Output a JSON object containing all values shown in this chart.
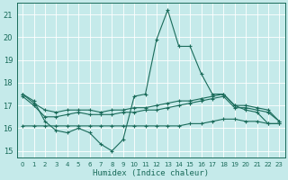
{
  "xlabel": "Humidex (Indice chaleur)",
  "xlim": [
    -0.5,
    23.5
  ],
  "ylim": [
    14.7,
    21.5
  ],
  "yticks": [
    15,
    16,
    17,
    18,
    19,
    20,
    21
  ],
  "bg_color": "#c5eaea",
  "grid_color": "#ffffff",
  "line_color": "#1a6b5a",
  "line1": [
    17.5,
    17.2,
    16.3,
    15.9,
    15.8,
    16.0,
    15.8,
    15.3,
    15.0,
    15.5,
    17.4,
    17.5,
    19.9,
    21.2,
    19.6,
    19.6,
    18.4,
    17.5,
    17.5,
    17.0,
    16.8,
    16.7,
    16.2,
    16.2
  ],
  "line2": [
    17.5,
    17.1,
    16.8,
    16.7,
    16.8,
    16.8,
    16.8,
    16.7,
    16.8,
    16.8,
    16.9,
    16.9,
    17.0,
    17.1,
    17.2,
    17.2,
    17.3,
    17.4,
    17.5,
    17.0,
    17.0,
    16.9,
    16.8,
    16.3
  ],
  "line3": [
    17.4,
    17.0,
    16.5,
    16.5,
    16.6,
    16.7,
    16.6,
    16.6,
    16.6,
    16.7,
    16.7,
    16.8,
    16.8,
    16.9,
    17.0,
    17.1,
    17.2,
    17.3,
    17.4,
    16.9,
    16.9,
    16.8,
    16.7,
    16.3
  ],
  "line4": [
    16.1,
    16.1,
    16.1,
    16.1,
    16.1,
    16.1,
    16.1,
    16.1,
    16.1,
    16.1,
    16.1,
    16.1,
    16.1,
    16.1,
    16.1,
    16.2,
    16.2,
    16.3,
    16.4,
    16.4,
    16.3,
    16.3,
    16.2,
    16.2
  ]
}
